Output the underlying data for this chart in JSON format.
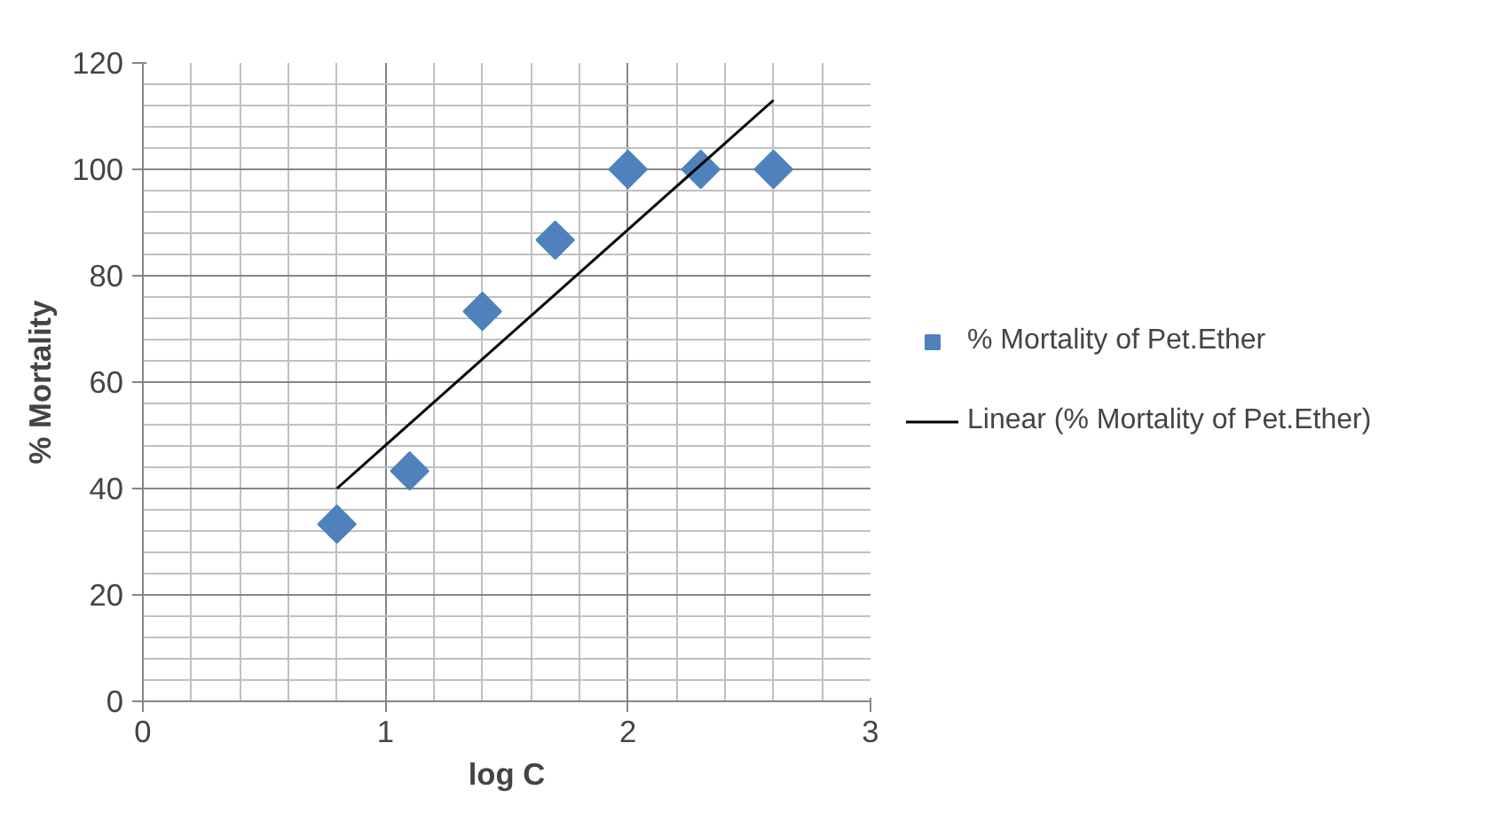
{
  "chart_data": {
    "type": "scatter",
    "xlabel": "log C",
    "ylabel": "% Mortality",
    "xlim": [
      0,
      3
    ],
    "xticks": [
      0,
      1,
      2,
      3
    ],
    "ylim": [
      0,
      120
    ],
    "yticks": [
      0,
      20,
      40,
      60,
      80,
      100,
      120
    ],
    "grid": true,
    "legend": "right",
    "series": [
      {
        "name": "% Mortality of Pet.Ether",
        "type": "scatter",
        "marker": "diamond",
        "color": "#4f81bd",
        "x": [
          0.8,
          1.1,
          1.4,
          1.7,
          2.0,
          2.3,
          2.6
        ],
        "values": [
          33.3,
          43.3,
          73.3,
          86.7,
          100,
          100,
          100
        ]
      },
      {
        "name": "Linear (% Mortality of Pet.Ether)",
        "type": "line",
        "color": "#000000",
        "x": [
          0.8,
          2.6
        ],
        "values": [
          40,
          113
        ]
      }
    ]
  }
}
